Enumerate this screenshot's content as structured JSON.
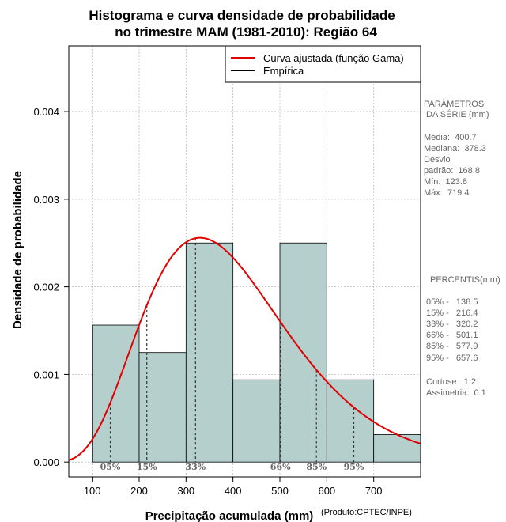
{
  "chart_data": {
    "type": "bar",
    "title": [
      "Histograma e curva densidade de probabilidade",
      "no trimestre MAM (1981-2010): Região 64"
    ],
    "xlabel": "Precipitação acumulada (mm)",
    "ylabel": "Densidade de probabilidade",
    "credit": "(Produto:CPTEC/INPE)",
    "xlim": [
      50,
      800
    ],
    "ylim": [
      -0.00017,
      0.00475
    ],
    "x_ticks": [
      100,
      200,
      300,
      400,
      500,
      600,
      700
    ],
    "y_ticks": [
      0.0,
      0.001,
      0.002,
      0.003,
      0.004
    ],
    "y_tick_labels": [
      "0.000",
      "0.001",
      "0.002",
      "0.003",
      "0.004"
    ],
    "grid": true,
    "bins": [
      {
        "start": 100,
        "end": 200,
        "density": 0.001563
      },
      {
        "start": 200,
        "end": 300,
        "density": 0.00125
      },
      {
        "start": 300,
        "end": 400,
        "density": 0.0025
      },
      {
        "start": 400,
        "end": 500,
        "density": 0.000938
      },
      {
        "start": 500,
        "end": 600,
        "density": 0.0025
      },
      {
        "start": 600,
        "end": 700,
        "density": 0.000938
      },
      {
        "start": 700,
        "end": 800,
        "density": 0.000313
      }
    ],
    "bar_color": "#b5cfcd",
    "curve": {
      "name": "Curva ajustada (função Gama)",
      "color": "#e00000",
      "mean": 400.7,
      "sd": 168.8,
      "x_range": [
        50,
        800
      ]
    },
    "legend": {
      "position": "top-right",
      "entries": [
        {
          "label": "Curva ajustada (função Gama)",
          "color": "#e00000"
        },
        {
          "label": "Empírica",
          "color": "#000000"
        }
      ]
    },
    "percentile_markers": [
      {
        "label": "05%",
        "x": 138.5
      },
      {
        "label": "15%",
        "x": 216.4
      },
      {
        "label": "33%",
        "x": 320.2
      },
      {
        "label": "66%",
        "x": 501.1
      },
      {
        "label": "85%",
        "x": 577.9
      },
      {
        "label": "95%",
        "x": 657.6
      }
    ]
  },
  "side_panel": {
    "params_title": [
      "PARÂMETROS",
      " DA SÉRIE (mm)"
    ],
    "params": [
      "Média:  400.7",
      "Mediana:  378.3",
      "Desvio",
      "padrão:  168.8",
      "Mín:  123.8",
      "Máx:  719.4"
    ],
    "percentis_title": "PERCENTIS(mm)",
    "percentis": [
      "05% -   138.5",
      "15% -   216.4",
      "33% -   320.2",
      "66% -   501.1",
      "85% -   577.9",
      "95% -   657.6"
    ],
    "stats": [
      "Curtose:  1.2",
      "Assimetria:  0.1"
    ]
  }
}
